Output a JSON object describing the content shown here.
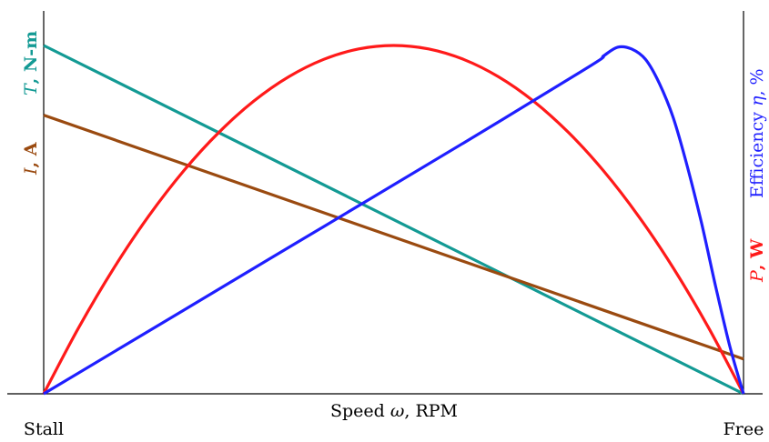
{
  "chart_data": {
    "type": "line",
    "xlabel": {
      "text": "Speed",
      "symbol": "ω",
      "unit": "RPM"
    },
    "x_ticks": [
      "Stall",
      "Free"
    ],
    "left_labels": [
      {
        "symbol": "T",
        "unit": "N-m",
        "color": "#139a94"
      },
      {
        "symbol": "I",
        "unit": "A",
        "color": "#9a4a10"
      }
    ],
    "right_labels": [
      {
        "symbol": "P",
        "unit": "W",
        "color": "#ff1a1a"
      },
      {
        "prefix": "Efficiency",
        "symbol": "η",
        "unit": "%",
        "color": "#1f1fff"
      }
    ],
    "xlim": [
      0,
      1
    ],
    "ylim": [
      0,
      1
    ],
    "series": [
      {
        "key": "torque",
        "color": "#139a94",
        "x": [
          0,
          1
        ],
        "y": [
          1.0,
          0.0
        ]
      },
      {
        "key": "current",
        "color": "#9a4a10",
        "x": [
          0,
          1
        ],
        "y": [
          0.8,
          0.1
        ]
      },
      {
        "key": "power",
        "color": "#ff1a1a",
        "x": [
          0,
          0.05,
          0.1,
          0.15,
          0.2,
          0.25,
          0.3,
          0.35,
          0.4,
          0.45,
          0.5,
          0.55,
          0.6,
          0.65,
          0.7,
          0.75,
          0.8,
          0.85,
          0.9,
          0.95,
          1.0
        ],
        "y": [
          0,
          0.19,
          0.36,
          0.51,
          0.64,
          0.75,
          0.84,
          0.91,
          0.96,
          0.99,
          1.0,
          0.99,
          0.96,
          0.91,
          0.84,
          0.75,
          0.64,
          0.51,
          0.36,
          0.19,
          0
        ]
      },
      {
        "key": "efficiency",
        "color": "#1f1fff",
        "x": [
          0,
          0.2,
          0.4,
          0.6,
          0.78,
          0.8,
          0.82,
          0.84,
          0.86,
          0.88,
          0.9,
          0.92,
          0.94,
          0.96,
          0.98,
          1.0
        ],
        "y": [
          0,
          0.24,
          0.48,
          0.72,
          0.94,
          0.97,
          0.995,
          0.99,
          0.96,
          0.89,
          0.79,
          0.65,
          0.49,
          0.31,
          0.14,
          0
        ]
      }
    ]
  }
}
